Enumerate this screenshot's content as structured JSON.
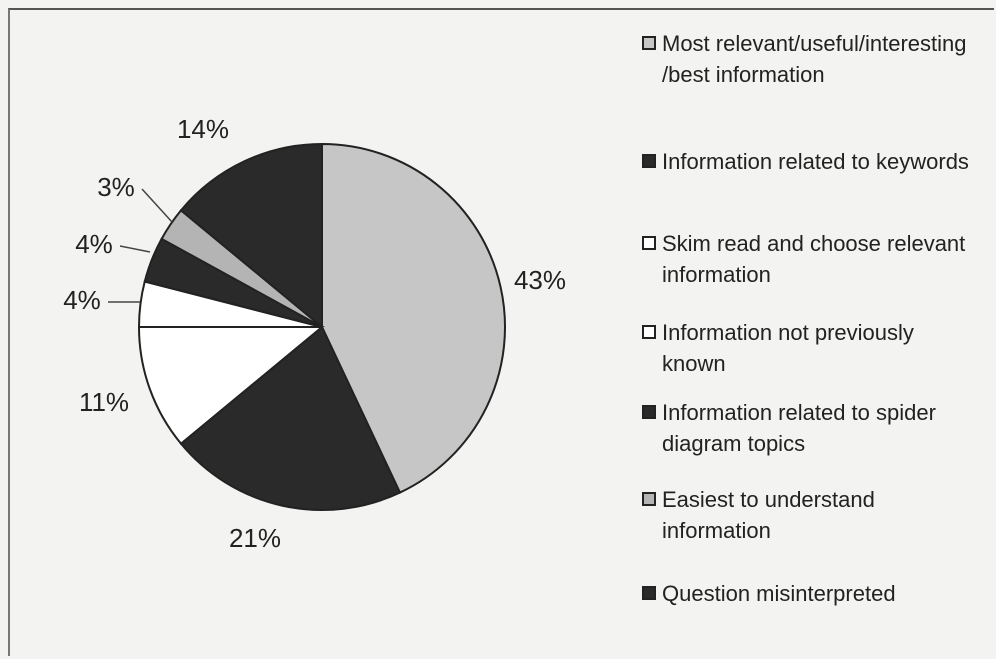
{
  "chart_data": {
    "type": "pie",
    "categories": [
      "Most relevant/useful/interesting /best information",
      "Information related to keywords",
      "Skim read and choose relevant information",
      "Information not previously known",
      "Information related to spider diagram topics",
      "Easiest to understand information",
      "Question misinterpreted"
    ],
    "slice_order": [
      0,
      1,
      2,
      3,
      4,
      5,
      6
    ],
    "values": [
      43,
      21,
      11,
      4,
      4,
      3,
      14
    ],
    "value_labels": [
      "43%",
      "21%",
      "11%",
      "4%",
      "4%",
      "3%",
      "14%"
    ],
    "colors": [
      "#c6c6c6",
      "#2a2a2a",
      "#ffffff",
      "#ffffff",
      "#2a2a2a",
      "#b4b4b4",
      "#2a2a2a"
    ]
  }
}
